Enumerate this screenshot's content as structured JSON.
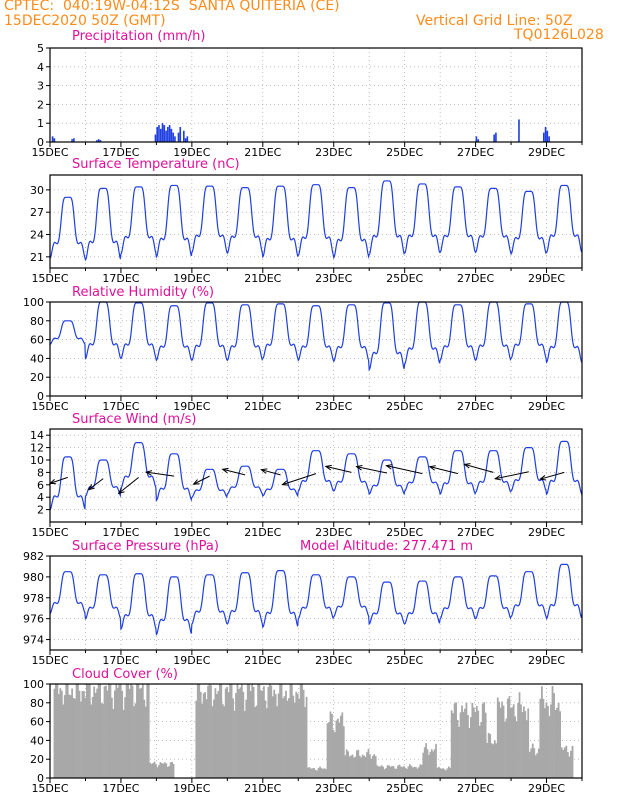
{
  "header": {
    "line1_left": "CPTEC:  040:19W-04:12S  SANTA QUITERIA (CE)",
    "line1_right": "Vertical Grid Line: 50Z",
    "line2_left": "15DEC2020 50Z (GMT)",
    "line2_right": "TQ0126L028"
  },
  "colors": {
    "header": "#ff8c1a",
    "title": "#e0109a",
    "series": "#1f3fe0",
    "cloud": "#a8a8a8",
    "wind_arrow": "#000000",
    "grid": "#999999"
  },
  "x_tick_labels": [
    "15DEC",
    "17DEC",
    "19DEC",
    "21DEC",
    "23DEC",
    "25DEC",
    "27DEC",
    "29DEC"
  ],
  "chart_data": [
    {
      "type": "bar",
      "title": "Precipitation (mm/h)",
      "ylim": [
        0,
        5
      ],
      "yticks": [
        "0",
        "1",
        "2",
        "3",
        "4",
        "5"
      ],
      "x_days": [
        0.05,
        0.1,
        0.6,
        0.65,
        1.3,
        1.35,
        1.4,
        2.95,
        3.0,
        3.05,
        3.1,
        3.15,
        3.2,
        3.25,
        3.3,
        3.35,
        3.4,
        3.45,
        3.5,
        3.6,
        3.65,
        3.75,
        3.8,
        3.85,
        12.0,
        12.05,
        12.5,
        12.55,
        13.2,
        13.9,
        13.95,
        14.0,
        14.05
      ],
      "values": [
        0.3,
        0.2,
        0.15,
        0.2,
        0.1,
        0.15,
        0.1,
        0.4,
        0.8,
        0.9,
        0.7,
        1.0,
        0.9,
        0.6,
        0.8,
        0.9,
        0.7,
        0.5,
        0.3,
        0.5,
        0.8,
        0.6,
        0.2,
        0.3,
        0.3,
        0.15,
        0.4,
        0.5,
        1.2,
        0.5,
        0.8,
        0.6,
        0.3
      ]
    },
    {
      "type": "line",
      "title": "Surface Temperature (nC)",
      "ylim": [
        19.5,
        32
      ],
      "yticks": [
        "21",
        "24",
        "27",
        "30"
      ],
      "series": [
        {
          "daily_min": [
            20.8,
            20.6,
            21.4,
            21.0,
            21.6,
            21.5,
            21.0,
            21.2,
            20.9,
            21.3,
            21.5,
            21.6,
            21.6,
            21.4,
            21.6,
            21.7
          ],
          "daily_max": [
            29.0,
            30.2,
            30.4,
            30.6,
            30.5,
            30.3,
            30.5,
            30.7,
            30.3,
            31.2,
            30.8,
            30.4,
            30.2,
            29.8,
            30.6,
            30.8
          ]
        }
      ]
    },
    {
      "type": "line",
      "title": "Relative Humidity (%)",
      "ylim": [
        0,
        100
      ],
      "yticks": [
        "0",
        "20",
        "40",
        "60",
        "80",
        "100"
      ],
      "series": [
        {
          "daily_min": [
            55,
            40,
            40,
            38,
            38,
            38,
            40,
            38,
            37,
            28,
            34,
            38,
            38,
            40,
            36,
            38
          ],
          "daily_max": [
            80,
            100,
            99,
            96,
            99,
            97,
            98,
            96,
            97,
            99,
            100,
            97,
            100,
            98,
            100,
            99
          ]
        }
      ]
    },
    {
      "type": "line",
      "title": "Surface Wind (m/s)",
      "ylim": [
        0,
        15
      ],
      "yticks": [
        "2",
        "4",
        "6",
        "8",
        "10",
        "12",
        "14"
      ],
      "series": [
        {
          "daily_min": [
            2,
            4.2,
            5.5,
            3.5,
            4.0,
            4.5,
            4.2,
            5.0,
            5.0,
            4.5,
            5.0,
            4.5,
            4.8,
            5.0,
            4.5,
            5.0
          ],
          "daily_max": [
            10.5,
            10.0,
            12.8,
            11.0,
            8.5,
            9.0,
            8.5,
            11.5,
            11.0,
            10.0,
            10.5,
            11.5,
            11.5,
            12.0,
            13.0,
            12.0
          ]
        }
      ],
      "wind_vectors": {
        "x_days": [
          0.5,
          1.5,
          2.5,
          3.5,
          4.5,
          5.5,
          6.5,
          7.5,
          8.5,
          9.5,
          10.5,
          11.5,
          12.5,
          13.5,
          14.5
        ],
        "speed": [
          7.2,
          7.0,
          7.2,
          7.4,
          7.4,
          7.6,
          7.6,
          7.8,
          8.0,
          7.9,
          7.8,
          7.8,
          8.0,
          8.1,
          8.0
        ],
        "arrow_dx": [
          -0.22,
          -0.18,
          -0.25,
          -0.35,
          -0.2,
          -0.28,
          -0.24,
          -0.42,
          -0.32,
          -0.38,
          -0.45,
          -0.35,
          -0.36,
          -0.42,
          -0.3
        ],
        "arrow_dy": [
          0.3,
          0.55,
          0.8,
          -0.2,
          0.4,
          -0.28,
          -0.26,
          0.55,
          -0.3,
          -0.32,
          -0.4,
          -0.35,
          -0.4,
          0.35,
          0.34
        ]
      }
    },
    {
      "type": "line",
      "title": "Surface Pressure (hPa)",
      "annotation": "Model Altitude: 277.471  m",
      "ylim": [
        973,
        982
      ],
      "yticks": [
        "974",
        "976",
        "978",
        "980",
        "982"
      ],
      "series": [
        {
          "daily_min": [
            976.5,
            976.0,
            975.0,
            974.5,
            975.5,
            975.5,
            975.2,
            976.0,
            976.2,
            975.5,
            975.5,
            976.0,
            976.0,
            976.2,
            976.0,
            976.5
          ],
          "daily_max": [
            980.5,
            980.2,
            980.3,
            980.0,
            980.2,
            980.4,
            980.6,
            980.2,
            980.0,
            979.5,
            979.6,
            980.0,
            980.1,
            980.5,
            981.2,
            981.0
          ]
        }
      ]
    },
    {
      "type": "bar",
      "title": "Cloud Cover (%)",
      "ylim": [
        0,
        100
      ],
      "yticks": [
        "0",
        "20",
        "40",
        "60",
        "80",
        "100"
      ],
      "segments": [
        {
          "start_day": 0.1,
          "end_day": 2.8,
          "level": 95
        },
        {
          "start_day": 2.8,
          "end_day": 3.5,
          "level": 15
        },
        {
          "start_day": 4.1,
          "end_day": 7.25,
          "level": 93
        },
        {
          "start_day": 7.25,
          "end_day": 7.8,
          "level": 10
        },
        {
          "start_day": 7.8,
          "end_day": 8.3,
          "level": 60
        },
        {
          "start_day": 8.3,
          "end_day": 9.2,
          "level": 25
        },
        {
          "start_day": 9.2,
          "end_day": 10.5,
          "level": 12
        },
        {
          "start_day": 10.5,
          "end_day": 10.9,
          "level": 30
        },
        {
          "start_day": 10.9,
          "end_day": 11.3,
          "level": 10
        },
        {
          "start_day": 11.3,
          "end_day": 12.3,
          "level": 70
        },
        {
          "start_day": 12.3,
          "end_day": 12.6,
          "level": 40
        },
        {
          "start_day": 12.6,
          "end_day": 13.5,
          "level": 75
        },
        {
          "start_day": 13.5,
          "end_day": 13.8,
          "level": 30
        },
        {
          "start_day": 13.8,
          "end_day": 14.4,
          "level": 80
        },
        {
          "start_day": 14.4,
          "end_day": 14.75,
          "level": 30
        }
      ]
    }
  ]
}
